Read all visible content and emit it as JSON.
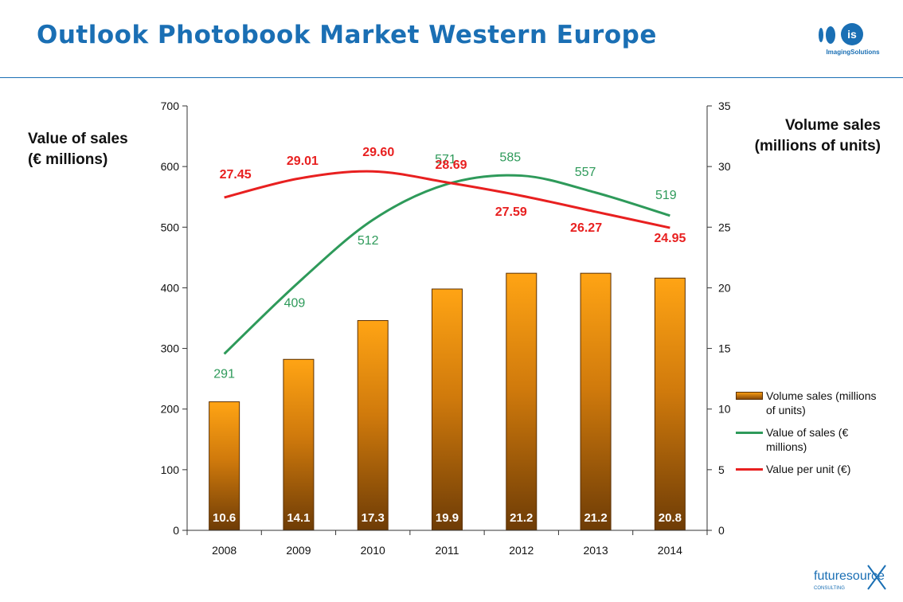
{
  "page": {
    "title": "Outlook Photobook Market Western Europe"
  },
  "logos": {
    "top": {
      "mark": "is",
      "text": "ImagingSolutions",
      "color": "#1a6fb4"
    },
    "bottom": {
      "text": "futuresource",
      "subtext": "CONSULTING",
      "color": "#1a6fb4"
    }
  },
  "chart_data": {
    "type": "bar",
    "categories": [
      "2008",
      "2009",
      "2010",
      "2011",
      "2012",
      "2013",
      "2014"
    ],
    "y_left": {
      "label_line1": "Value of sales",
      "label_line2": "(€ millions)",
      "range": [
        0,
        700
      ],
      "ticks": [
        "0",
        "100",
        "200",
        "300",
        "400",
        "500",
        "600",
        "700"
      ]
    },
    "y_right": {
      "label_line1": "Volume sales",
      "label_line2": "(millions of units)",
      "range": [
        0,
        35
      ],
      "ticks": [
        "0",
        "5",
        "10",
        "15",
        "20",
        "25",
        "30",
        "35"
      ]
    },
    "series": [
      {
        "name": "Volume sales (millions of units)",
        "name_line1": "Volume sales (millions",
        "name_line2": "of units)",
        "type": "bar",
        "axis": "right",
        "values": [
          10.6,
          14.1,
          17.3,
          19.9,
          21.2,
          21.2,
          20.8
        ],
        "labels": [
          "10.6",
          "14.1",
          "17.3",
          "19.9",
          "21.2",
          "21.2",
          "20.8"
        ],
        "color": "#f59a12"
      },
      {
        "name": "Value of sales (€ millions)",
        "name_line1": "Value of sales (€",
        "name_line2": "millions)",
        "type": "line",
        "axis": "left",
        "values": [
          291,
          409,
          512,
          571,
          585,
          557,
          519
        ],
        "labels": [
          "291",
          "409",
          "512",
          "571",
          "585",
          "557",
          "519"
        ],
        "color": "#2e9a5a"
      },
      {
        "name": "Value per unit (€)",
        "name_line1": "Value per unit  (€)",
        "type": "line",
        "axis": "left",
        "values": [
          27.45,
          29.01,
          29.6,
          28.69,
          27.59,
          26.27,
          24.95
        ],
        "labels": [
          "27.45",
          "29.01",
          "29.60",
          "28.69",
          "27.59",
          "26.27",
          "24.95"
        ],
        "color": "#e82020"
      }
    ],
    "legend_position": "right",
    "grid": false
  }
}
